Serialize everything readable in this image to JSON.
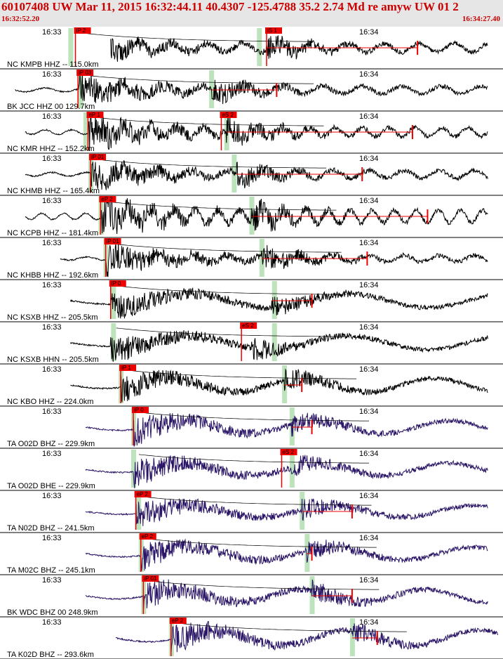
{
  "header": {
    "title": "60107408 UW Mar 11, 2015 16:32:44.11    40.4307 -125.4788 35.2 2.74 Md re amyw UW 01   2",
    "start_time": "16:32:52.20",
    "end_time": "16:34:27.40"
  },
  "colors": {
    "header_bg": "#e6e6e6",
    "header_text": "#cc0000",
    "pick_box": "#ee0000",
    "trace_nc_bk": "#000000",
    "trace_ta": "#2a1566",
    "window_green": "#bde3bd",
    "arrival_curve": "#000000"
  },
  "chart_data": {
    "type": "line",
    "title": "60107408 UW Mar 11, 2015 16:32:44.11    40.4307 -125.4788 35.2 2.74 Md re amyw UW 01   2",
    "x_axis": {
      "start": "16:32:52.20",
      "end": "16:34:27.40",
      "tick_labels": [
        "16:33",
        "16:34"
      ]
    },
    "series": [
      {
        "name": "NC KMPB HHZ -- 115.0km",
        "channel": "HHZ",
        "distance_km": 115.0,
        "picks": [
          "iP 2",
          "iS 1"
        ],
        "amp": 0.35,
        "period": 0.8,
        "t0": 0.22,
        "t1": 0.97,
        "ptime": 0.15,
        "stime": 0.53,
        "burst": 0.85,
        "green": [
          0.14,
          0.515
        ],
        "pickx": [
          0.15,
          0.53
        ],
        "tick": 0.83,
        "color_group": "nc"
      },
      {
        "name": "BK JCC HHZ 00 129.7km",
        "channel": "HHZ",
        "distance_km": 129.7,
        "picks": [
          "iP 03"
        ],
        "amp": 0.3,
        "period": 0.9,
        "t0": 0.03,
        "t1": 0.97,
        "ptime": 0.155,
        "stime": 0.42,
        "burst": 0.8,
        "green": [
          0.16,
          0.42
        ],
        "pickx": [
          0.155
        ],
        "tick": 0.55,
        "color_group": "bk"
      },
      {
        "name": "NC KMR HHZ -- 152.2km",
        "channel": "HHZ",
        "distance_km": 152.2,
        "picks": [
          "eP 1",
          "eS 2"
        ],
        "amp": 0.35,
        "period": 0.6,
        "t0": 0.05,
        "t1": 0.97,
        "ptime": 0.175,
        "stime": 0.45,
        "burst": 0.9,
        "green": [
          0.17,
          0.45
        ],
        "pickx": [
          0.175,
          0.44
        ],
        "tick": 0.82,
        "color_group": "nc"
      },
      {
        "name": "NC KHMB HHZ -- 165.4km",
        "channel": "HHZ",
        "distance_km": 165.4,
        "picks": [
          "iP 01"
        ],
        "amp": 0.3,
        "period": 0.8,
        "t0": 0.05,
        "t1": 0.97,
        "ptime": 0.18,
        "stime": 0.47,
        "burst": 0.75,
        "green": [
          0.18,
          0.465
        ],
        "pickx": [
          0.18
        ],
        "tick": 0.72,
        "color_group": "nc"
      },
      {
        "name": "NC KCPB HHZ -- 181.4km",
        "channel": "HHZ",
        "distance_km": 181.4,
        "picks": [
          "eP 2"
        ],
        "amp": 0.5,
        "period": 0.5,
        "t0": 0.05,
        "t1": 0.97,
        "ptime": 0.2,
        "stime": 0.5,
        "burst": 0.95,
        "green": [
          0.2,
          0.5
        ],
        "pickx": [
          0.2
        ],
        "tick": 0.85,
        "color_group": "nc"
      },
      {
        "name": "NC KHBB HHZ -- 192.6km",
        "channel": "HHZ",
        "distance_km": 192.6,
        "picks": [
          "iP 01"
        ],
        "amp": 0.25,
        "period": 0.8,
        "t0": 0.12,
        "t1": 0.97,
        "ptime": 0.21,
        "stime": 0.52,
        "burst": 0.8,
        "green": [
          0.21,
          0.52
        ],
        "pickx": [
          0.21
        ],
        "tick": 0.73,
        "color_group": "nc"
      },
      {
        "name": "NC KSXB HHZ -- 205.5km",
        "channel": "HHZ",
        "distance_km": 205.5,
        "picks": [
          "iP 0"
        ],
        "amp": 0.55,
        "period": 3.6,
        "t0": 0.14,
        "t1": 0.97,
        "ptime": 0.22,
        "stime": 0.54,
        "burst": 0.7,
        "green": [
          0.225,
          0.545
        ],
        "pickx": [
          0.22
        ],
        "tick": 0.62,
        "color_group": "nc"
      },
      {
        "name": "NC KSXB HHN -- 205.5km",
        "channel": "HHN",
        "distance_km": 205.5,
        "picks": [
          "eS 2"
        ],
        "amp": 0.55,
        "period": 3.6,
        "t0": 0.14,
        "t1": 0.97,
        "ptime": 0.22,
        "stime": 0.5,
        "burst": 0.7,
        "green": [
          0.225,
          0.545
        ],
        "pickx": [
          0.48
        ],
        "tick": 0.0,
        "color_group": "nc"
      },
      {
        "name": "NC KBO HHZ -- 224.0km",
        "channel": "HHZ",
        "distance_km": 224.0,
        "picks": [
          "iP 1"
        ],
        "amp": 0.55,
        "period": 3.0,
        "t0": 0.14,
        "t1": 0.97,
        "ptime": 0.24,
        "stime": 0.565,
        "burst": 0.7,
        "green": [
          0.24,
          0.565
        ],
        "pickx": [
          0.24
        ],
        "tick": 0.6,
        "color_group": "nc"
      },
      {
        "name": "TA O02D BHZ -- 229.9km",
        "channel": "BHZ",
        "distance_km": 229.9,
        "picks": [
          "iP 0"
        ],
        "amp": 0.5,
        "period": 3.0,
        "t0": 0.17,
        "t1": 0.97,
        "ptime": 0.265,
        "stime": 0.58,
        "burst": 0.75,
        "green": [
          0.265,
          0.58
        ],
        "pickx": [
          0.265
        ],
        "tick": 0.62,
        "color_group": "ta"
      },
      {
        "name": "TA O02D BHE -- 229.9km",
        "channel": "BHE",
        "distance_km": 229.9,
        "picks": [
          "eS 2"
        ],
        "amp": 0.5,
        "period": 3.0,
        "t0": 0.17,
        "t1": 0.97,
        "ptime": 0.265,
        "stime": 0.575,
        "burst": 0.75,
        "green": [
          0.265,
          0.58
        ],
        "pickx": [
          0.56
        ],
        "tick": 0.0,
        "color_group": "ta"
      },
      {
        "name": "TA N02D BHZ -- 241.5km",
        "channel": "BHZ",
        "distance_km": 241.5,
        "picks": [
          "eP 2"
        ],
        "amp": 0.45,
        "period": 3.2,
        "t0": 0.17,
        "t1": 0.97,
        "ptime": 0.27,
        "stime": 0.6,
        "burst": 0.7,
        "green": [
          0.275,
          0.6
        ],
        "pickx": [
          0.27
        ],
        "tick": 0.7,
        "color_group": "ta"
      },
      {
        "name": "TA M02C BHZ -- 245.1km",
        "channel": "BHZ",
        "distance_km": 245.1,
        "picks": [
          "eP 2"
        ],
        "amp": 0.5,
        "period": 3.2,
        "t0": 0.17,
        "t1": 0.97,
        "ptime": 0.28,
        "stime": 0.61,
        "burst": 0.7,
        "green": [
          0.28,
          0.61
        ],
        "pickx": [
          0.28
        ],
        "tick": 0.62,
        "color_group": "ta"
      },
      {
        "name": "BK WDC BHZ 00 248.9km",
        "channel": "BHZ",
        "distance_km": 248.9,
        "picks": [
          "iP 01"
        ],
        "amp": 0.5,
        "period": 2.8,
        "t0": 0.17,
        "t1": 0.97,
        "ptime": 0.285,
        "stime": 0.62,
        "burst": 0.72,
        "green": [
          0.285,
          0.62
        ],
        "pickx": [
          0.285
        ],
        "tick": 0.7,
        "color_group": "bk_ta"
      },
      {
        "name": "TA K02D BHZ -- 293.6km",
        "channel": "BHZ",
        "distance_km": 293.6,
        "picks": [
          "eP 2"
        ],
        "amp": 0.6,
        "period": 3.0,
        "t0": 0.23,
        "t1": 0.99,
        "ptime": 0.34,
        "stime": 0.7,
        "burst": 0.75,
        "green": [
          0.34,
          0.7
        ],
        "pickx": [
          0.34
        ],
        "tick": 0.75,
        "color_group": "ta"
      }
    ]
  }
}
